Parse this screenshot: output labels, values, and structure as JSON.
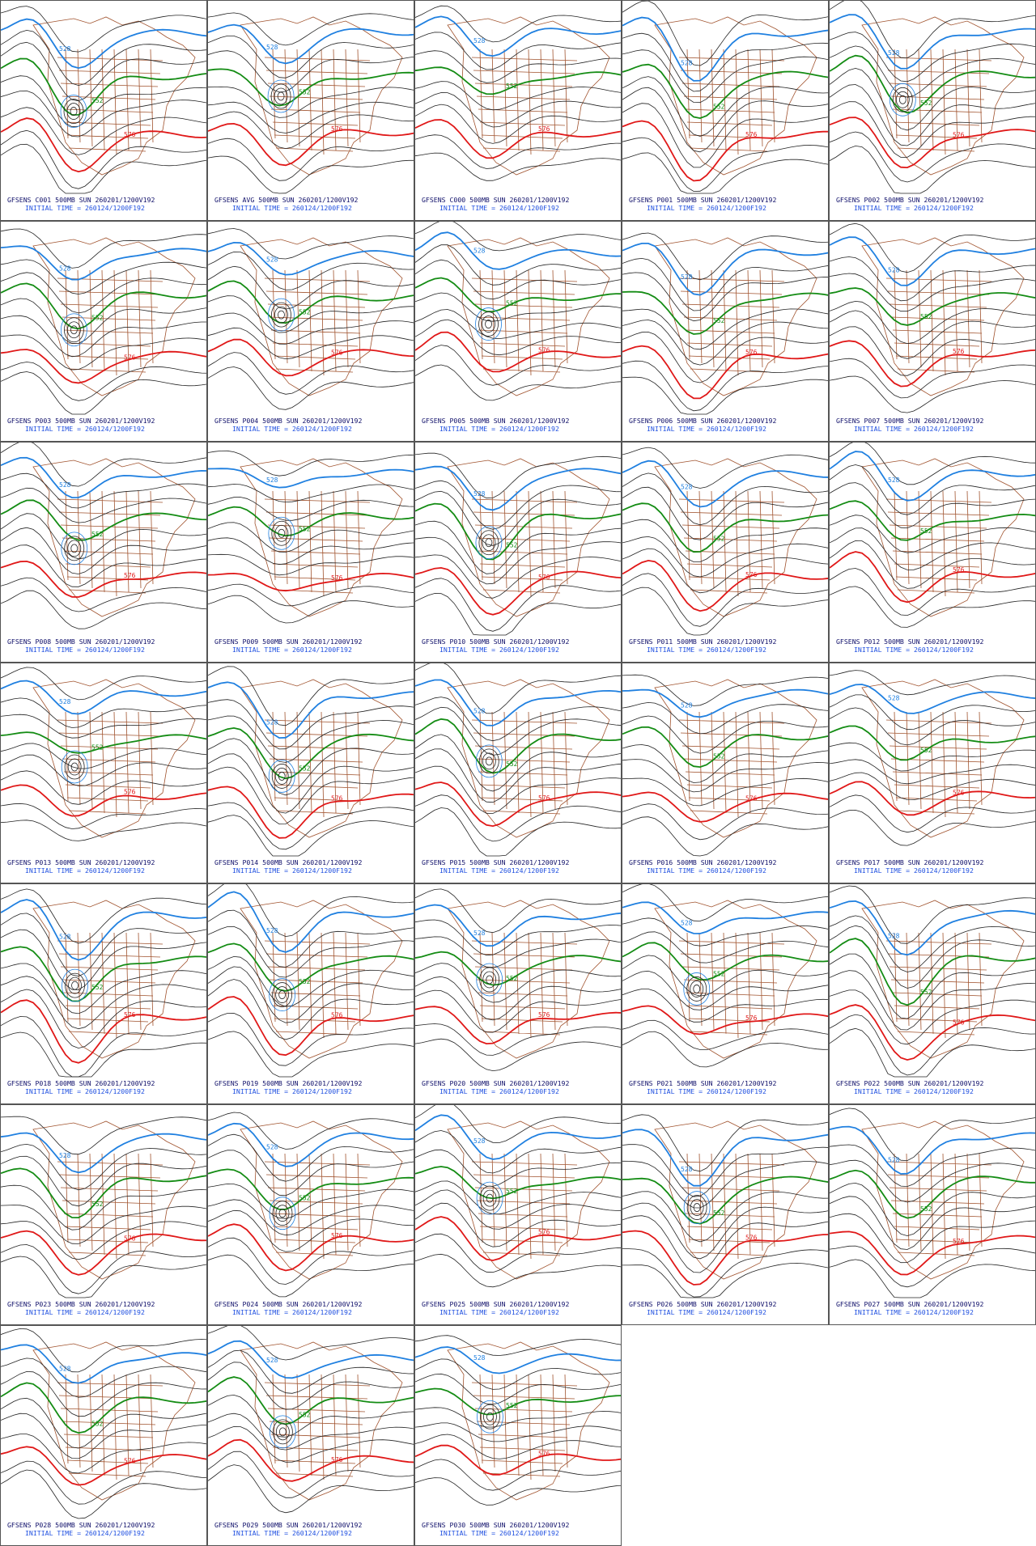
{
  "panels": [
    {
      "title": "GFSENS C001 500MB SUN 260201/1200V192",
      "init_time": "INITIAL TIME = 260124/1200F192",
      "contour_labels": [
        "528",
        "552",
        "576"
      ]
    },
    {
      "title": "GFSENS AVG 500MB SUN 260201/1200V192",
      "init_time": "INITIAL TIME = 260124/1200F192",
      "contour_labels": [
        "528",
        "552",
        "576"
      ]
    },
    {
      "title": "GFSENS C000 500MB SUN 260201/1200V192",
      "init_time": "INITIAL TIME = 260124/1200F192",
      "contour_labels": [
        "528",
        "552",
        "576"
      ]
    },
    {
      "title": "GFSENS P001 500MB SUN 260201/1200V192",
      "init_time": "INITIAL TIME = 260124/1200F192",
      "contour_labels": [
        "528",
        "552",
        "576"
      ]
    },
    {
      "title": "GFSENS P002 500MB SUN 260201/1200V192",
      "init_time": "INITIAL TIME = 260124/1200F192",
      "contour_labels": [
        "528",
        "552",
        "576"
      ]
    },
    {
      "title": "GFSENS P003 500MB SUN 260201/1200V192",
      "init_time": "INITIAL TIME = 260124/1200F192",
      "contour_labels": [
        "528",
        "552",
        "576"
      ]
    },
    {
      "title": "GFSENS P004 500MB SUN 260201/1200V192",
      "init_time": "INITIAL TIME = 260124/1200F192",
      "contour_labels": [
        "528",
        "552",
        "576"
      ]
    },
    {
      "title": "GFSENS P005 500MB SUN 260201/1200V192",
      "init_time": "INITIAL TIME = 260124/1200F192",
      "contour_labels": [
        "528",
        "552",
        "576"
      ]
    },
    {
      "title": "GFSENS P006 500MB SUN 260201/1200V192",
      "init_time": "INITIAL TIME = 260124/1200F192",
      "contour_labels": [
        "528",
        "552",
        "576"
      ]
    },
    {
      "title": "GFSENS P007 500MB SUN 260201/1200V192",
      "init_time": "INITIAL TIME = 260124/1200F192",
      "contour_labels": [
        "528",
        "552",
        "576"
      ]
    },
    {
      "title": "GFSENS P008 500MB SUN 260201/1200V192",
      "init_time": "INITIAL TIME = 260124/1200F192",
      "contour_labels": [
        "528",
        "552",
        "576"
      ]
    },
    {
      "title": "GFSENS P009 500MB SUN 260201/1200V192",
      "init_time": "INITIAL TIME = 260124/1200F192",
      "contour_labels": [
        "528",
        "552",
        "576"
      ]
    },
    {
      "title": "GFSENS P010 500MB SUN 260201/1200V192",
      "init_time": "INITIAL TIME = 260124/1200F192",
      "contour_labels": [
        "528",
        "552",
        "576"
      ]
    },
    {
      "title": "GFSENS P011 500MB SUN 260201/1200V192",
      "init_time": "INITIAL TIME = 260124/1200F192",
      "contour_labels": [
        "528",
        "552",
        "576"
      ]
    },
    {
      "title": "GFSENS P012 500MB SUN 260201/1200V192",
      "init_time": "INITIAL TIME = 260124/1200F192",
      "contour_labels": [
        "528",
        "552",
        "576"
      ]
    },
    {
      "title": "GFSENS P013 500MB SUN 260201/1200V192",
      "init_time": "INITIAL TIME = 260124/1200F192",
      "contour_labels": [
        "528",
        "552",
        "576"
      ]
    },
    {
      "title": "GFSENS P014 500MB SUN 260201/1200V192",
      "init_time": "INITIAL TIME = 260124/1200F192",
      "contour_labels": [
        "528",
        "552",
        "576"
      ]
    },
    {
      "title": "GFSENS P015 500MB SUN 260201/1200V192",
      "init_time": "INITIAL TIME = 260124/1200F192",
      "contour_labels": [
        "528",
        "552",
        "576"
      ]
    },
    {
      "title": "GFSENS P016 500MB SUN 260201/1200V192",
      "init_time": "INITIAL TIME = 260124/1200F192",
      "contour_labels": [
        "528",
        "552",
        "576"
      ]
    },
    {
      "title": "GFSENS P017 500MB SUN 260201/1200V192",
      "init_time": "INITIAL TIME = 260124/1200F192",
      "contour_labels": [
        "528",
        "552",
        "576"
      ]
    },
    {
      "title": "GFSENS P018 500MB SUN 260201/1200V192",
      "init_time": "INITIAL TIME = 260124/1200F192",
      "contour_labels": [
        "528",
        "552",
        "576"
      ]
    },
    {
      "title": "GFSENS P019 500MB SUN 260201/1200V192",
      "init_time": "INITIAL TIME = 260124/1200F192",
      "contour_labels": [
        "528",
        "552",
        "576"
      ]
    },
    {
      "title": "GFSENS P020 500MB SUN 260201/1200V192",
      "init_time": "INITIAL TIME = 260124/1200F192",
      "contour_labels": [
        "528",
        "552",
        "576"
      ]
    },
    {
      "title": "GFSENS P021 500MB SUN 260201/1200V192",
      "init_time": "INITIAL TIME = 260124/1200F192",
      "contour_labels": [
        "528",
        "552",
        "576"
      ]
    },
    {
      "title": "GFSENS P022 500MB SUN 260201/1200V192",
      "init_time": "INITIAL TIME = 260124/1200F192",
      "contour_labels": [
        "528",
        "552",
        "576"
      ]
    },
    {
      "title": "GFSENS P023 500MB SUN 260201/1200V192",
      "init_time": "INITIAL TIME = 260124/1200F192",
      "contour_labels": [
        "528",
        "552",
        "576"
      ]
    },
    {
      "title": "GFSENS P024 500MB SUN 260201/1200V192",
      "init_time": "INITIAL TIME = 260124/1200F192",
      "contour_labels": [
        "528",
        "552",
        "576"
      ]
    },
    {
      "title": "GFSENS P025 500MB SUN 260201/1200V192",
      "init_time": "INITIAL TIME = 260124/1200F192",
      "contour_labels": [
        "528",
        "552",
        "576"
      ]
    },
    {
      "title": "GFSENS P026 500MB SUN 260201/1200V192",
      "init_time": "INITIAL TIME = 260124/1200F192",
      "contour_labels": [
        "528",
        "552",
        "576"
      ]
    },
    {
      "title": "GFSENS P027 500MB SUN 260201/1200V192",
      "init_time": "INITIAL TIME = 260124/1200F192",
      "contour_labels": [
        "528",
        "552",
        "576"
      ]
    },
    {
      "title": "GFSENS P028 500MB SUN 260201/1200V192",
      "init_time": "INITIAL TIME = 260124/1200F192",
      "contour_labels": [
        "528",
        "552",
        "576"
      ]
    },
    {
      "title": "GFSENS P029 500MB SUN 260201/1200V192",
      "init_time": "INITIAL TIME = 260124/1200F192",
      "contour_labels": [
        "528",
        "552",
        "576"
      ]
    },
    {
      "title": "GFSENS P030 500MB SUN 260201/1200V192",
      "init_time": "INITIAL TIME = 260124/1200F192",
      "contour_labels": [
        "528",
        "552",
        "576"
      ]
    }
  ]
}
